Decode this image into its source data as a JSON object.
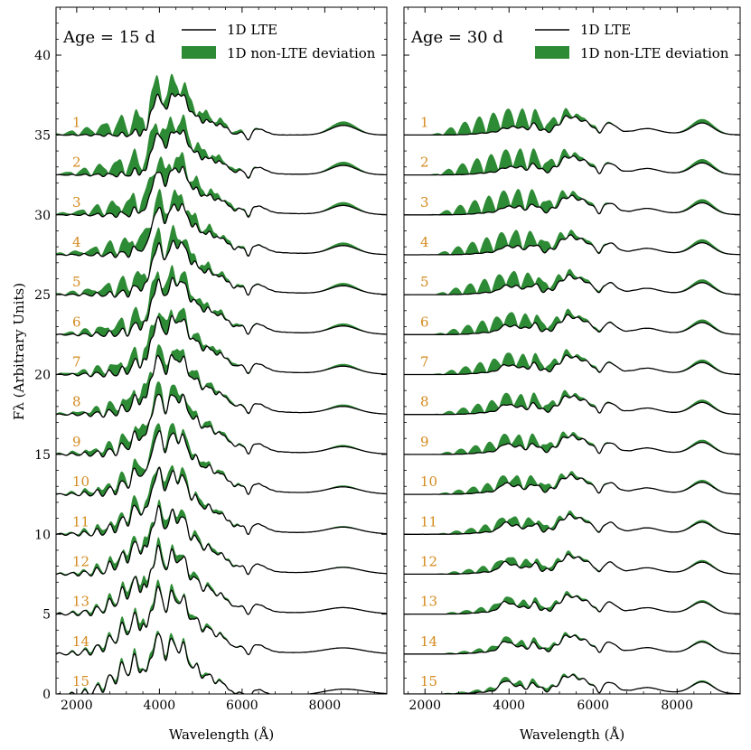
{
  "chart_data": {
    "type": "line",
    "ylabel": "F$_\\lambda$ (Arbitrary Units)",
    "ylabel_display": "Fλ (Arbitrary Units)",
    "xlabel": "Wavelength (Å)",
    "xlim": [
      1500,
      9500
    ],
    "ylim": [
      0,
      43
    ],
    "xticks": [
      2000,
      4000,
      6000,
      8000
    ],
    "yticks": [
      0,
      5,
      10,
      15,
      20,
      25,
      30,
      35,
      40
    ],
    "legend_position": "top-right",
    "legend": [
      "1D LTE",
      "1D non-LTE deviation"
    ],
    "colors": {
      "lte": "#000000",
      "nlte": "#2e8b35",
      "label": "#d48a1e"
    },
    "model_labels": [
      "1",
      "2",
      "3",
      "4",
      "5",
      "6",
      "7",
      "8",
      "9",
      "10",
      "11",
      "12",
      "13",
      "14",
      "15"
    ],
    "model_offsets": [
      35.0,
      32.5,
      30.0,
      27.5,
      25.0,
      22.5,
      20.0,
      17.5,
      15.0,
      12.5,
      10.0,
      7.5,
      5.0,
      2.5,
      0.0
    ],
    "panels": [
      {
        "title": "Age = 15 d",
        "series": [
          {
            "name": "1D LTE",
            "x": [
              1500,
              2500,
              3000,
              3500,
              3800,
              4000,
              4500,
              5000,
              5500,
              5800,
              6000,
              6300,
              7000,
              8000,
              8500,
              9000,
              9500
            ],
            "y": [
              35.0,
              35.1,
              35.3,
              35.6,
              36.6,
              37.4,
              38.3,
              37.0,
              36.1,
              35.3,
              35.8,
              35.9,
              35.1,
              35.0,
              35.7,
              35.3,
              35.2
            ]
          },
          {
            "name": "1D non-LTE deviation",
            "x": [
              2500,
              3000,
              3500,
              4000,
              4500,
              5000,
              5500,
              6000,
              8500
            ],
            "y": [
              36.0,
              36.5,
              37.0,
              38.0,
              38.5,
              37.3,
              36.5,
              35.9,
              35.8
            ]
          }
        ]
      },
      {
        "title": "Age = 30 d",
        "series": [
          {
            "name": "1D LTE",
            "x": [
              1500,
              2500,
              3000,
              3500,
              4000,
              4500,
              5000,
              5500,
              6000,
              6500,
              7000,
              7500,
              8000,
              8500,
              9000,
              9500
            ],
            "y": [
              35.0,
              35.0,
              35.1,
              35.2,
              35.2,
              35.6,
              35.3,
              36.2,
              35.8,
              35.7,
              35.2,
              35.1,
              35.0,
              35.8,
              35.3,
              35.1
            ]
          },
          {
            "name": "1D non-LTE deviation",
            "x": [
              2500,
              3000,
              3500,
              4000,
              4500,
              5000,
              5500,
              6000,
              6500,
              7000,
              8500
            ],
            "y": [
              35.6,
              36.2,
              36.4,
              36.1,
              36.0,
              35.6,
              36.3,
              35.9,
              35.8,
              35.6,
              35.9
            ]
          }
        ]
      }
    ]
  }
}
